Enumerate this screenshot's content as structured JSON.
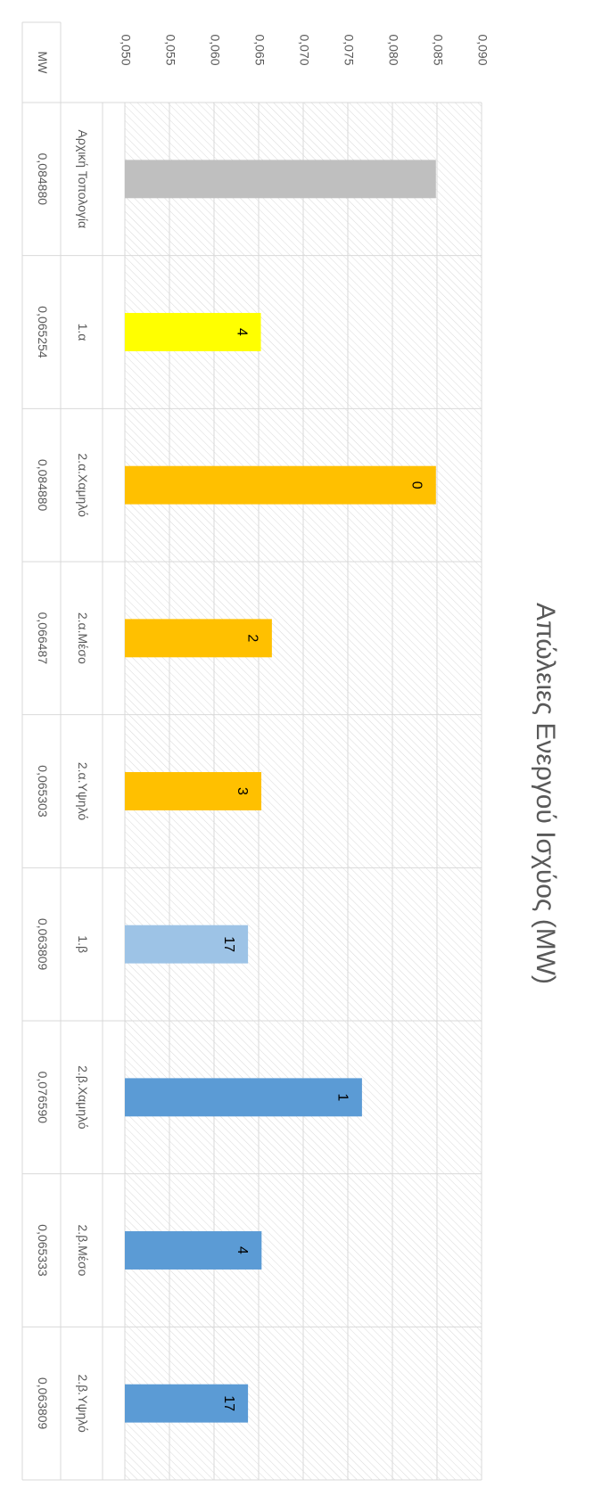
{
  "chart_data": {
    "type": "bar",
    "title": "Απώλειες Ενεργού Ισχύος (MW)",
    "categories": [
      "Αρχική Τοπολογία",
      "1.α",
      "2.α.Χαμηλό",
      "2.α.Μέσο",
      "2.α.Υψηλό",
      "1.β",
      "2.β.Χαμηλό",
      "2.β.Μέσο",
      "2.β.Υψηλό"
    ],
    "values": [
      0.08488,
      0.065254,
      0.08488,
      0.066487,
      0.065303,
      0.063809,
      0.07659,
      0.065333,
      0.063809
    ],
    "value_labels": [
      "0,084880",
      "0,065254",
      "0,084880",
      "0,066487",
      "0,065303",
      "0,063809",
      "0,076590",
      "0,065333",
      "0,063809"
    ],
    "bar_labels": [
      null,
      4,
      0,
      2,
      3,
      17,
      1,
      4,
      17
    ],
    "colors": [
      "#bfbfbf",
      "#ffff00",
      "#ffc000",
      "#ffc000",
      "#ffc000",
      "#9dc3e6",
      "#5b9bd5",
      "#5b9bd5",
      "#5b9bd5"
    ],
    "table_row_header": "MW",
    "ylim": [
      0.05,
      0.09
    ],
    "yticks": [
      {
        "value": 0.05,
        "label": "0,050"
      },
      {
        "value": 0.055,
        "label": "0,055"
      },
      {
        "value": 0.06,
        "label": "0,060"
      },
      {
        "value": 0.065,
        "label": "0,065"
      },
      {
        "value": 0.07,
        "label": "0,070"
      },
      {
        "value": 0.075,
        "label": "0,075"
      },
      {
        "value": 0.08,
        "label": "0,080"
      },
      {
        "value": 0.085,
        "label": "0,085"
      },
      {
        "value": 0.09,
        "label": "0,090"
      }
    ],
    "grid": true
  }
}
